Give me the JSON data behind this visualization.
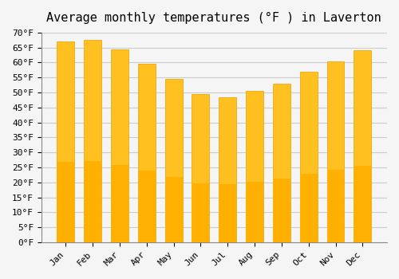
{
  "title": "Average monthly temperatures (°F ) in Laverton",
  "months": [
    "Jan",
    "Feb",
    "Mar",
    "Apr",
    "May",
    "Jun",
    "Jul",
    "Aug",
    "Sep",
    "Oct",
    "Nov",
    "Dec"
  ],
  "values": [
    67.0,
    67.5,
    64.5,
    59.5,
    54.5,
    49.5,
    48.5,
    50.5,
    53.0,
    57.0,
    60.5,
    64.0
  ],
  "bar_color_top": "#FFC020",
  "bar_color_bottom": "#FFB000",
  "ylim": [
    0,
    70
  ],
  "yticks": [
    0,
    5,
    10,
    15,
    20,
    25,
    30,
    35,
    40,
    45,
    50,
    55,
    60,
    65,
    70
  ],
  "ytick_labels": [
    "0°F",
    "5°F",
    "10°F",
    "15°F",
    "20°F",
    "25°F",
    "30°F",
    "35°F",
    "40°F",
    "45°F",
    "50°F",
    "55°F",
    "60°F",
    "65°F",
    "70°F"
  ],
  "background_color": "#f5f5f5",
  "grid_color": "#cccccc",
  "title_fontsize": 11,
  "tick_fontsize": 8,
  "bar_edge_color": "#E8A000",
  "title_font_family": "monospace"
}
